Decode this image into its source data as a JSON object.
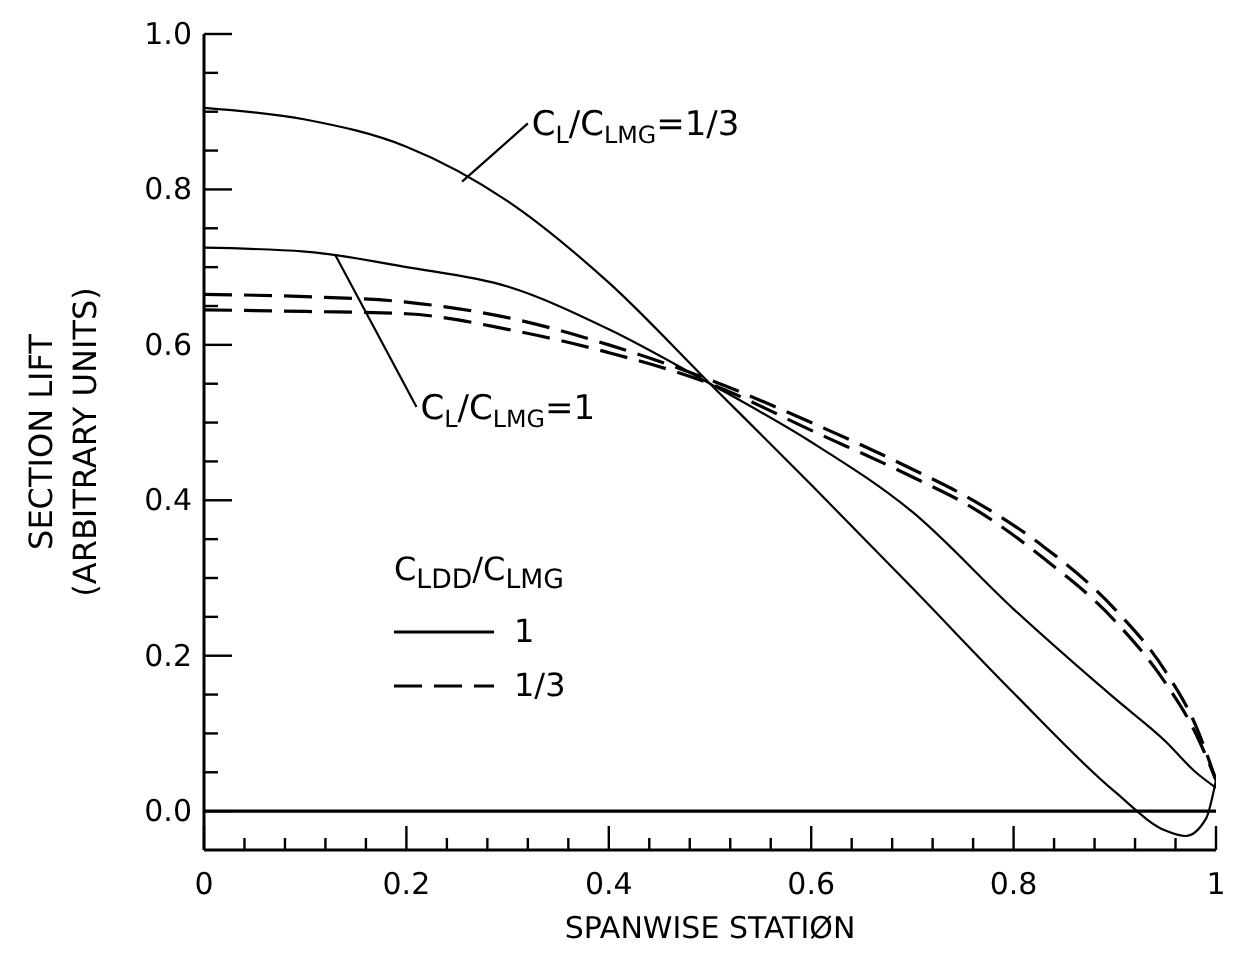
{
  "chart_data": {
    "type": "line",
    "xlabel": "SPANWISE STATIØN",
    "ylabel": "SECTION LIFT\n(ARBITRARY UNITS)",
    "legend_title": "C$_{LDD}$/C$_{LMG}$",
    "legend": "bottom left",
    "xlim": [
      0,
      1
    ],
    "ylim": [
      -0.05,
      1
    ],
    "xticks": [
      {
        "value": 0,
        "label": "0"
      },
      {
        "value": 0.04,
        "label": null
      },
      {
        "value": 0.08,
        "label": null
      },
      {
        "value": 0.12,
        "label": null
      },
      {
        "value": 0.16,
        "label": null
      },
      {
        "value": 0.2,
        "label": "0.2"
      },
      {
        "value": 0.24,
        "label": null
      },
      {
        "value": 0.28,
        "label": null
      },
      {
        "value": 0.32,
        "label": null
      },
      {
        "value": 0.36,
        "label": null
      },
      {
        "value": 0.4,
        "label": "0.4"
      },
      {
        "value": 0.44,
        "label": null
      },
      {
        "value": 0.48,
        "label": null
      },
      {
        "value": 0.52,
        "label": null
      },
      {
        "value": 0.56,
        "label": null
      },
      {
        "value": 0.6,
        "label": "0.6"
      },
      {
        "value": 0.64,
        "label": null
      },
      {
        "value": 0.68,
        "label": null
      },
      {
        "value": 0.72,
        "label": null
      },
      {
        "value": 0.76,
        "label": null
      },
      {
        "value": 0.8,
        "label": "0.8"
      },
      {
        "value": 0.84,
        "label": null
      },
      {
        "value": 0.88,
        "label": null
      },
      {
        "value": 0.92,
        "label": null
      },
      {
        "value": 0.96,
        "label": null
      },
      {
        "value": 1,
        "label": "1"
      }
    ],
    "yticks": [
      {
        "value": 0,
        "label": "0.0"
      },
      {
        "value": 0.05,
        "label": null
      },
      {
        "value": 0.1,
        "label": null
      },
      {
        "value": 0.15,
        "label": null
      },
      {
        "value": 0.2,
        "label": "0.2"
      },
      {
        "value": 0.25,
        "label": null
      },
      {
        "value": 0.3,
        "label": null
      },
      {
        "value": 0.35,
        "label": null
      },
      {
        "value": 0.4,
        "label": "0.4"
      },
      {
        "value": 0.45,
        "label": null
      },
      {
        "value": 0.5,
        "label": null
      },
      {
        "value": 0.55,
        "label": null
      },
      {
        "value": 0.6,
        "label": "0.6"
      },
      {
        "value": 0.65,
        "label": null
      },
      {
        "value": 0.7,
        "label": null
      },
      {
        "value": 0.75,
        "label": null
      },
      {
        "value": 0.8,
        "label": "0.8"
      },
      {
        "value": 0.85,
        "label": null
      },
      {
        "value": 0.9,
        "label": null
      },
      {
        "value": 0.95,
        "label": null
      },
      {
        "value": 1,
        "label": "1.0"
      }
    ],
    "ref_lines": [
      {
        "axis": "y",
        "value": 0,
        "color": "#000000"
      }
    ],
    "annotations": [
      {
        "text": "C$_{L}$/C$_{LMG}$=1/3",
        "x": 0.255,
        "y": 0.81
      },
      {
        "text": "C$_{L}$/C$_{LMG}$=1",
        "x": 0.13,
        "y": 0.715
      }
    ],
    "series": [
      {
        "name": "1",
        "color": "#000000",
        "line_style": "solid",
        "x": [
          0,
          0.1,
          0.2,
          0.3,
          0.4,
          0.5,
          0.6,
          0.7,
          0.8,
          0.9,
          0.95,
          0.97,
          0.99,
          1
        ],
        "values": [
          0.905,
          0.89,
          0.855,
          0.785,
          0.68,
          0.55,
          0.42,
          0.287,
          0.152,
          0.025,
          -0.025,
          -0.032,
          -0.01,
          0.04
        ]
      },
      {
        "color": "#000000",
        "line_style": "solid",
        "x": [
          0,
          0.1,
          0.2,
          0.3,
          0.4,
          0.5,
          0.6,
          0.7,
          0.8,
          0.9,
          0.95,
          0.98,
          1
        ],
        "values": [
          0.725,
          0.72,
          0.7,
          0.675,
          0.62,
          0.55,
          0.475,
          0.385,
          0.26,
          0.145,
          0.09,
          0.05,
          0.03
        ]
      },
      {
        "name": "1/3",
        "color": "#000000",
        "line_style": "dashed",
        "x": [
          0,
          0.1,
          0.2,
          0.3,
          0.4,
          0.5,
          0.6,
          0.7,
          0.76,
          0.83,
          0.9,
          0.95,
          0.98,
          1
        ],
        "values": [
          0.665,
          0.662,
          0.655,
          0.635,
          0.6,
          0.555,
          0.5,
          0.44,
          0.4,
          0.34,
          0.26,
          0.18,
          0.11,
          0.04
        ]
      },
      {
        "color": "#000000",
        "line_style": "dashed",
        "x": [
          0,
          0.1,
          0.2,
          0.3,
          0.4,
          0.5,
          0.6,
          0.7,
          0.76,
          0.83,
          0.9,
          0.95,
          0.98,
          1
        ],
        "values": [
          0.645,
          0.643,
          0.64,
          0.62,
          0.59,
          0.55,
          0.49,
          0.43,
          0.39,
          0.325,
          0.245,
          0.165,
          0.1,
          0.04
        ]
      }
    ]
  }
}
